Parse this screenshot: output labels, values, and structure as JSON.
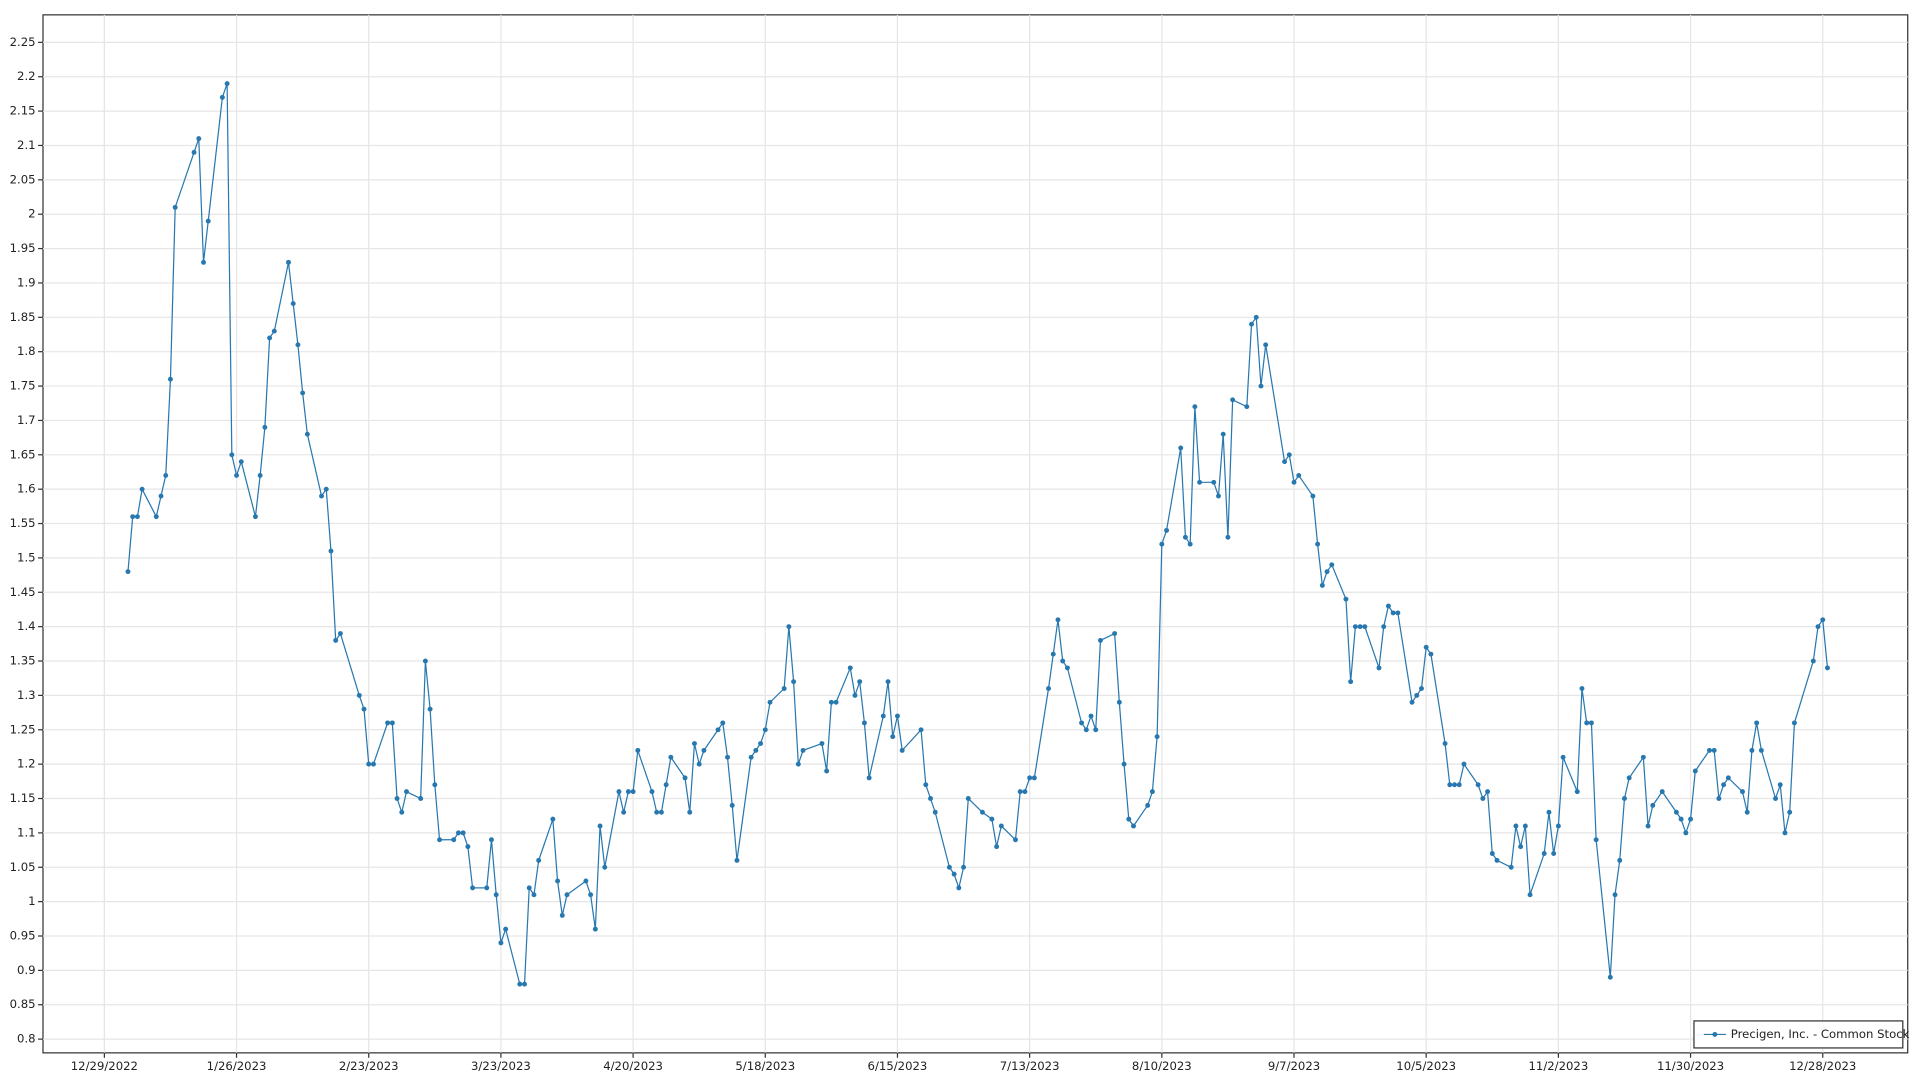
{
  "chart_data": {
    "type": "line",
    "x": [
      "1/3/2023",
      "1/4/2023",
      "1/5/2023",
      "1/6/2023",
      "1/9/2023",
      "1/10/2023",
      "1/11/2023",
      "1/12/2023",
      "1/13/2023",
      "1/17/2023",
      "1/18/2023",
      "1/19/2023",
      "1/20/2023",
      "1/23/2023",
      "1/24/2023",
      "1/25/2023",
      "1/26/2023",
      "1/27/2023",
      "1/30/2023",
      "1/31/2023",
      "2/1/2023",
      "2/2/2023",
      "2/3/2023",
      "2/6/2023",
      "2/7/2023",
      "2/8/2023",
      "2/9/2023",
      "2/10/2023",
      "2/13/2023",
      "2/14/2023",
      "2/15/2023",
      "2/16/2023",
      "2/17/2023",
      "2/21/2023",
      "2/22/2023",
      "2/23/2023",
      "2/24/2023",
      "2/27/2023",
      "2/28/2023",
      "3/1/2023",
      "3/2/2023",
      "3/3/2023",
      "3/6/2023",
      "3/7/2023",
      "3/8/2023",
      "3/9/2023",
      "3/10/2023",
      "3/13/2023",
      "3/14/2023",
      "3/15/2023",
      "3/16/2023",
      "3/17/2023",
      "3/20/2023",
      "3/21/2023",
      "3/22/2023",
      "3/23/2023",
      "3/24/2023",
      "3/27/2023",
      "3/28/2023",
      "3/29/2023",
      "3/30/2023",
      "3/31/2023",
      "4/3/2023",
      "4/4/2023",
      "4/5/2023",
      "4/6/2023",
      "4/10/2023",
      "4/11/2023",
      "4/12/2023",
      "4/13/2023",
      "4/14/2023",
      "4/17/2023",
      "4/18/2023",
      "4/19/2023",
      "4/20/2023",
      "4/21/2023",
      "4/24/2023",
      "4/25/2023",
      "4/26/2023",
      "4/27/2023",
      "4/28/2023",
      "5/1/2023",
      "5/2/2023",
      "5/3/2023",
      "5/4/2023",
      "5/5/2023",
      "5/8/2023",
      "5/9/2023",
      "5/10/2023",
      "5/11/2023",
      "5/12/2023",
      "5/15/2023",
      "5/16/2023",
      "5/17/2023",
      "5/18/2023",
      "5/19/2023",
      "5/22/2023",
      "5/23/2023",
      "5/24/2023",
      "5/25/2023",
      "5/26/2023",
      "5/30/2023",
      "5/31/2023",
      "6/1/2023",
      "6/2/2023",
      "6/5/2023",
      "6/6/2023",
      "6/7/2023",
      "6/8/2023",
      "6/9/2023",
      "6/12/2023",
      "6/13/2023",
      "6/14/2023",
      "6/15/2023",
      "6/16/2023",
      "6/20/2023",
      "6/21/2023",
      "6/22/2023",
      "6/23/2023",
      "6/26/2023",
      "6/27/2023",
      "6/28/2023",
      "6/29/2023",
      "6/30/2023",
      "7/3/2023",
      "7/5/2023",
      "7/6/2023",
      "7/7/2023",
      "7/10/2023",
      "7/11/2023",
      "7/12/2023",
      "7/13/2023",
      "7/14/2023",
      "7/17/2023",
      "7/18/2023",
      "7/19/2023",
      "7/20/2023",
      "7/21/2023",
      "7/24/2023",
      "7/25/2023",
      "7/26/2023",
      "7/27/2023",
      "7/28/2023",
      "7/31/2023",
      "8/1/2023",
      "8/2/2023",
      "8/3/2023",
      "8/4/2023",
      "8/7/2023",
      "8/8/2023",
      "8/9/2023",
      "8/10/2023",
      "8/11/2023",
      "8/14/2023",
      "8/15/2023",
      "8/16/2023",
      "8/17/2023",
      "8/18/2023",
      "8/21/2023",
      "8/22/2023",
      "8/23/2023",
      "8/24/2023",
      "8/25/2023",
      "8/28/2023",
      "8/29/2023",
      "8/30/2023",
      "8/31/2023",
      "9/1/2023",
      "9/5/2023",
      "9/6/2023",
      "9/7/2023",
      "9/8/2023",
      "9/11/2023",
      "9/12/2023",
      "9/13/2023",
      "9/14/2023",
      "9/15/2023",
      "9/18/2023",
      "9/19/2023",
      "9/20/2023",
      "9/21/2023",
      "9/22/2023",
      "9/25/2023",
      "9/26/2023",
      "9/27/2023",
      "9/28/2023",
      "9/29/2023",
      "10/2/2023",
      "10/3/2023",
      "10/4/2023",
      "10/5/2023",
      "10/6/2023",
      "10/9/2023",
      "10/10/2023",
      "10/11/2023",
      "10/12/2023",
      "10/13/2023",
      "10/16/2023",
      "10/17/2023",
      "10/18/2023",
      "10/19/2023",
      "10/20/2023",
      "10/23/2023",
      "10/24/2023",
      "10/25/2023",
      "10/26/2023",
      "10/27/2023",
      "10/30/2023",
      "10/31/2023",
      "11/1/2023",
      "11/2/2023",
      "11/3/2023",
      "11/6/2023",
      "11/7/2023",
      "11/8/2023",
      "11/9/2023",
      "11/10/2023",
      "11/13/2023",
      "11/14/2023",
      "11/15/2023",
      "11/16/2023",
      "11/17/2023",
      "11/20/2023",
      "11/21/2023",
      "11/22/2023",
      "11/24/2023",
      "11/27/2023",
      "11/28/2023",
      "11/29/2023",
      "11/30/2023",
      "12/1/2023",
      "12/4/2023",
      "12/5/2023",
      "12/6/2023",
      "12/7/2023",
      "12/8/2023",
      "12/11/2023",
      "12/12/2023",
      "12/13/2023",
      "12/14/2023",
      "12/15/2023",
      "12/18/2023",
      "12/19/2023",
      "12/20/2023",
      "12/21/2023",
      "12/22/2023",
      "12/26/2023",
      "12/27/2023",
      "12/28/2023",
      "12/29/2023"
    ],
    "series": [
      {
        "name": "Precigen, Inc. - Common Stock",
        "color": "#2878b0",
        "values": [
          1.48,
          1.56,
          1.56,
          1.6,
          1.56,
          1.59,
          1.62,
          1.76,
          2.01,
          2.09,
          2.11,
          1.93,
          1.99,
          2.17,
          2.19,
          1.65,
          1.62,
          1.64,
          1.56,
          1.62,
          1.69,
          1.82,
          1.83,
          1.93,
          1.87,
          1.81,
          1.74,
          1.68,
          1.59,
          1.6,
          1.51,
          1.38,
          1.39,
          1.3,
          1.28,
          1.2,
          1.2,
          1.26,
          1.26,
          1.15,
          1.13,
          1.16,
          1.15,
          1.35,
          1.28,
          1.17,
          1.09,
          1.09,
          1.1,
          1.1,
          1.08,
          1.02,
          1.02,
          1.09,
          1.01,
          0.94,
          0.96,
          0.88,
          0.88,
          1.02,
          1.01,
          1.06,
          1.12,
          1.03,
          0.98,
          1.01,
          1.03,
          1.01,
          0.96,
          1.11,
          1.05,
          1.16,
          1.13,
          1.16,
          1.16,
          1.22,
          1.16,
          1.13,
          1.13,
          1.17,
          1.21,
          1.18,
          1.13,
          1.23,
          1.2,
          1.22,
          1.25,
          1.26,
          1.21,
          1.14,
          1.06,
          1.21,
          1.22,
          1.23,
          1.25,
          1.29,
          1.31,
          1.4,
          1.32,
          1.2,
          1.22,
          1.23,
          1.19,
          1.29,
          1.29,
          1.34,
          1.3,
          1.32,
          1.26,
          1.18,
          1.27,
          1.32,
          1.24,
          1.27,
          1.22,
          1.25,
          1.17,
          1.15,
          1.13,
          1.05,
          1.04,
          1.02,
          1.05,
          1.15,
          1.13,
          1.12,
          1.08,
          1.11,
          1.09,
          1.16,
          1.16,
          1.18,
          1.18,
          1.31,
          1.36,
          1.41,
          1.35,
          1.34,
          1.26,
          1.25,
          1.27,
          1.25,
          1.38,
          1.39,
          1.29,
          1.2,
          1.12,
          1.11,
          1.14,
          1.16,
          1.24,
          1.52,
          1.54,
          1.66,
          1.53,
          1.52,
          1.72,
          1.61,
          1.61,
          1.59,
          1.68,
          1.53,
          1.73,
          1.72,
          1.84,
          1.85,
          1.75,
          1.81,
          1.64,
          1.65,
          1.61,
          1.62,
          1.59,
          1.52,
          1.46,
          1.48,
          1.49,
          1.44,
          1.32,
          1.4,
          1.4,
          1.4,
          1.34,
          1.4,
          1.43,
          1.42,
          1.42,
          1.29,
          1.3,
          1.31,
          1.37,
          1.36,
          1.23,
          1.17,
          1.17,
          1.17,
          1.2,
          1.17,
          1.15,
          1.16,
          1.07,
          1.06,
          1.05,
          1.11,
          1.08,
          1.11,
          1.01,
          1.07,
          1.13,
          1.07,
          1.11,
          1.21,
          1.16,
          1.31,
          1.26,
          1.26,
          1.09,
          0.89,
          1.01,
          1.06,
          1.15,
          1.18,
          1.21,
          1.11,
          1.14,
          1.16,
          1.13,
          1.12,
          1.1,
          1.12,
          1.19,
          1.22,
          1.22,
          1.15,
          1.17,
          1.18,
          1.16,
          1.13,
          1.22,
          1.26,
          1.22,
          1.15,
          1.17,
          1.1,
          1.13,
          1.26,
          1.35,
          1.4,
          1.41,
          1.34
        ]
      }
    ],
    "xlim": [
      "12/16/2022",
      "1/15/2024"
    ],
    "xticks": [
      "12/29/2022",
      "1/26/2023",
      "2/23/2023",
      "3/23/2023",
      "4/20/2023",
      "5/18/2023",
      "6/15/2023",
      "7/13/2023",
      "8/10/2023",
      "9/7/2023",
      "10/5/2023",
      "11/2/2023",
      "11/30/2023",
      "12/28/2023"
    ],
    "ylim": [
      0.78,
      2.29
    ],
    "yticks": [
      0.8,
      0.85,
      0.9,
      0.95,
      1,
      1.05,
      1.1,
      1.15,
      1.2,
      1.25,
      1.3,
      1.35,
      1.4,
      1.45,
      1.5,
      1.55,
      1.6,
      1.65,
      1.7,
      1.75,
      1.8,
      1.85,
      1.9,
      1.95,
      2,
      2.05,
      2.1,
      2.15,
      2.2,
      2.25
    ],
    "grid": true,
    "legend": "lower right"
  }
}
